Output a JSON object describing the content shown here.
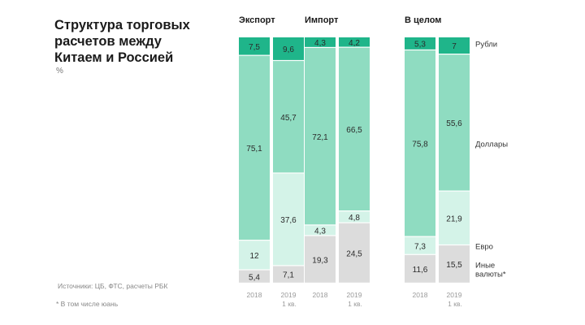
{
  "title": "Структура торговых\nрасчетов между\nКитаем  и Россией",
  "unit": "%",
  "source": "Источники: ЦБ, ФТС, расчеты РБК",
  "footnote": "* В том числе юань",
  "chart_data": {
    "type": "bar",
    "stacked": true,
    "normalized": true,
    "title": "Структура торговых расчетов между Китаем и Россией",
    "ylabel": "%",
    "ylim": [
      0,
      100
    ],
    "groups": [
      "Экспорт",
      "Импорт",
      "В целом"
    ],
    "periods": [
      {
        "line1": "2018",
        "line2": ""
      },
      {
        "line1": "2019",
        "line2": "1 кв."
      }
    ],
    "series": [
      {
        "name": "Иные валюты*",
        "color": "#dcdcdc",
        "values": [
          [
            5.4,
            7.1
          ],
          [
            19.3,
            24.5
          ],
          [
            11.6,
            15.5
          ]
        ]
      },
      {
        "name": "Евро",
        "color": "#d4f3e8",
        "values": [
          [
            12,
            37.6
          ],
          [
            4.3,
            4.8
          ],
          [
            7.3,
            21.9
          ]
        ]
      },
      {
        "name": "Доллары",
        "color": "#8fdcc1",
        "values": [
          [
            75.1,
            45.7
          ],
          [
            72.1,
            66.5
          ],
          [
            75.8,
            55.6
          ]
        ]
      },
      {
        "name": "Рубли",
        "color": "#1fb58a",
        "values": [
          [
            7.5,
            9.6
          ],
          [
            4.3,
            4.2
          ],
          [
            5.3,
            7
          ]
        ]
      }
    ],
    "value_labels": [
      [
        [
          "5,4",
          "12",
          "75,1",
          "7,5"
        ],
        [
          "7,1",
          "37,6",
          "45,7",
          "9,6"
        ]
      ],
      [
        [
          "19,3",
          "4,3",
          "72,1",
          "4,3"
        ],
        [
          "24,5",
          "4,8",
          "66,5",
          "4,2"
        ]
      ],
      [
        [
          "11,6",
          "7,3",
          "75,8",
          "5,3"
        ],
        [
          "15,5",
          "21,9",
          "55,6",
          "7"
        ]
      ]
    ],
    "legend": [
      {
        "label": "Рубли",
        "series": 3
      },
      {
        "label": "Доллары",
        "series": 2
      },
      {
        "label": "Евро",
        "series": 1
      },
      {
        "label": "Иные",
        "label2": "валюты*",
        "series": 0
      }
    ]
  }
}
